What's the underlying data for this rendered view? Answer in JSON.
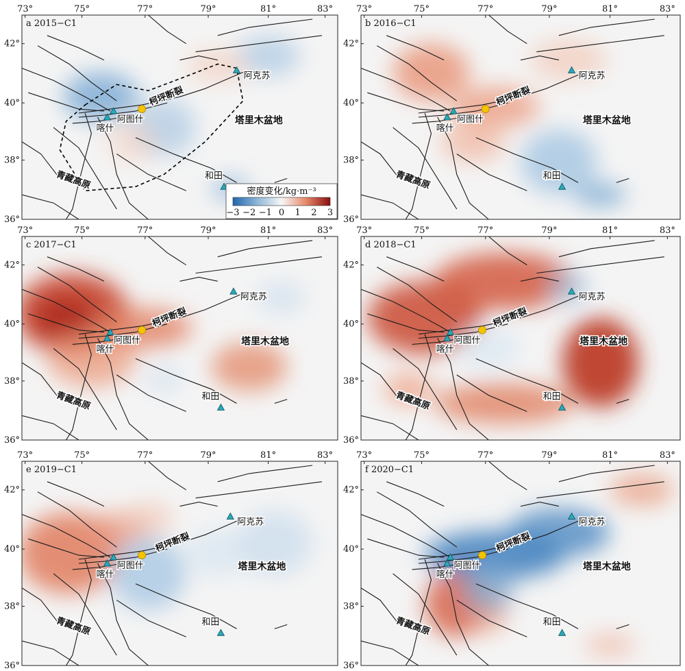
{
  "axis_ticks": {
    "lon": [
      "73°",
      "75°",
      "77°",
      "79°",
      "81°",
      "83°"
    ],
    "lat": [
      "42°",
      "40°",
      "38°",
      "36°"
    ]
  },
  "place_labels": {
    "aksu": "阿克苏",
    "artux": "阿图什",
    "kashgar": "喀什",
    "hotan": "和田",
    "tarim": "塔里木盆地",
    "tibet": "青藏高原",
    "fault": "柯坪断裂"
  },
  "colorbar": {
    "title": "密度变化/kg·m⁻³",
    "ticks": [
      "−3",
      "−2",
      "−1",
      "0",
      "1",
      "2",
      "3"
    ],
    "colors": [
      "#2166ac",
      "#8fb7d8",
      "#f7f7f7",
      "#e6896a",
      "#8a1010"
    ]
  },
  "panels": [
    {
      "title": "a 2015−C1"
    },
    {
      "title": "b 2016−C1"
    },
    {
      "title": "c 2017−C1"
    },
    {
      "title": "d 2018−C1"
    },
    {
      "title": "e 2019−C1"
    },
    {
      "title": "f 2020−C1"
    }
  ]
}
